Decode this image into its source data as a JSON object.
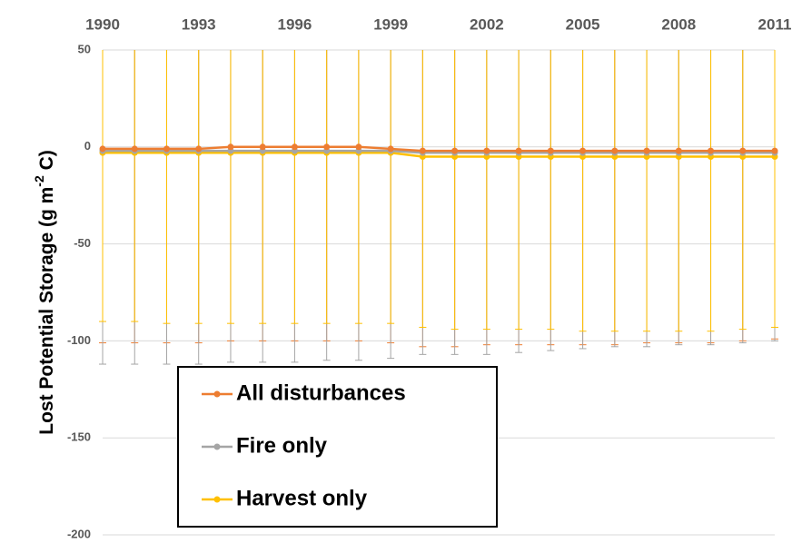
{
  "chart_data": {
    "type": "line",
    "y_label": {
      "text": "Lost Potential Storage (g m",
      "superscript": "-2",
      "suffix": " C)"
    },
    "x": [
      1990,
      1991,
      1992,
      1993,
      1994,
      1995,
      1996,
      1997,
      1998,
      1999,
      2000,
      2001,
      2002,
      2003,
      2004,
      2005,
      2006,
      2007,
      2008,
      2009,
      2010,
      2011
    ],
    "xlim": [
      1990,
      2011
    ],
    "xticks": [
      1990,
      1993,
      1996,
      1999,
      2002,
      2005,
      2008,
      2011
    ],
    "ylim": [
      -200,
      50
    ],
    "yticks": [
      -200,
      -150,
      -100,
      -50,
      0,
      50
    ],
    "grid": true,
    "series": [
      {
        "name": "All disturbances",
        "color": "#ed7d31",
        "values": [
          -1,
          -1,
          -1,
          -1,
          0,
          0,
          0,
          0,
          0,
          -1,
          -2,
          -2,
          -2,
          -2,
          -2,
          -2,
          -2,
          -2,
          -2,
          -2,
          -2,
          -2
        ],
        "errors": [
          100,
          100,
          100,
          100,
          100,
          100,
          100,
          100,
          100,
          100,
          101,
          101,
          100,
          100,
          100,
          100,
          100,
          99,
          99,
          99,
          98,
          97
        ]
      },
      {
        "name": "Fire only",
        "color": "#a5a5a5",
        "values": [
          -2,
          -2,
          -2,
          -2,
          -2,
          -2,
          -2,
          -2,
          -2,
          -2,
          -3,
          -3,
          -3,
          -3,
          -3,
          -3,
          -3,
          -3,
          -3,
          -3,
          -3,
          -3
        ],
        "errors": [
          110,
          110,
          110,
          110,
          109,
          109,
          109,
          108,
          108,
          107,
          104,
          104,
          104,
          103,
          102,
          101,
          100,
          100,
          99,
          99,
          98,
          97
        ]
      },
      {
        "name": "Harvest only",
        "color": "#ffc000",
        "values": [
          -3,
          -3,
          -3,
          -3,
          -3,
          -3,
          -3,
          -3,
          -3,
          -3,
          -5,
          -5,
          -5,
          -5,
          -5,
          -5,
          -5,
          -5,
          -5,
          -5,
          -5,
          -5
        ],
        "errors": [
          87,
          87,
          88,
          88,
          88,
          88,
          88,
          88,
          88,
          88,
          88,
          89,
          89,
          89,
          89,
          90,
          90,
          90,
          90,
          90,
          89,
          88
        ]
      }
    ]
  }
}
